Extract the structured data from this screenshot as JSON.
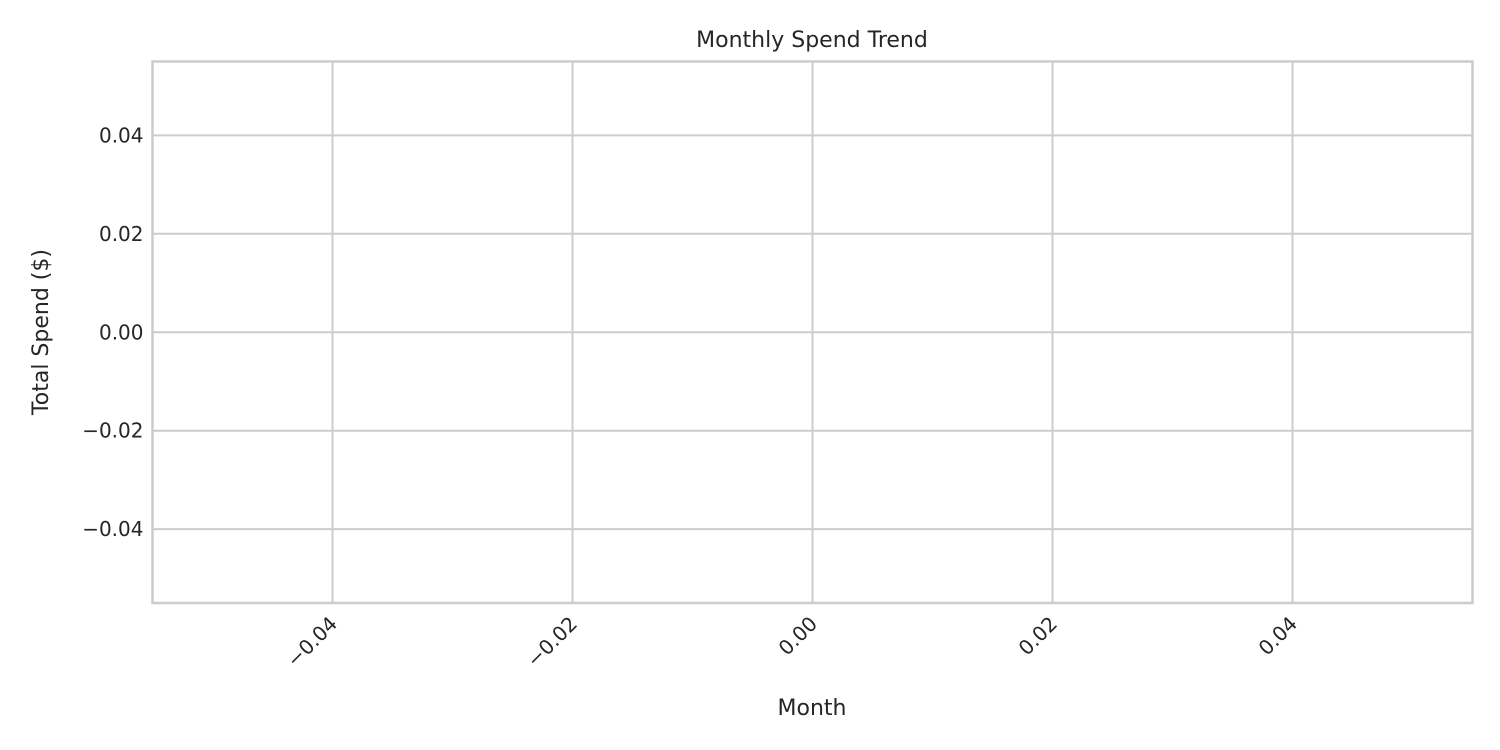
{
  "chart_data": {
    "type": "line",
    "title": "Monthly Spend Trend",
    "xlabel": "Month",
    "ylabel": "Total Spend ($)",
    "x_ticks": [
      "−0.04",
      "−0.02",
      "0.00",
      "0.02",
      "0.04"
    ],
    "x_tick_values": [
      -0.04,
      -0.02,
      0.0,
      0.02,
      0.04
    ],
    "y_ticks": [
      "0.04",
      "0.02",
      "0.00",
      "−0.02",
      "−0.04"
    ],
    "y_tick_values": [
      0.04,
      0.02,
      0.0,
      -0.02,
      -0.04
    ],
    "xlim": [
      -0.055,
      0.055
    ],
    "ylim": [
      -0.055,
      0.055
    ],
    "grid": true,
    "series": [
      {
        "x": [],
        "y": [],
        "color": "#1f77b4"
      }
    ]
  }
}
